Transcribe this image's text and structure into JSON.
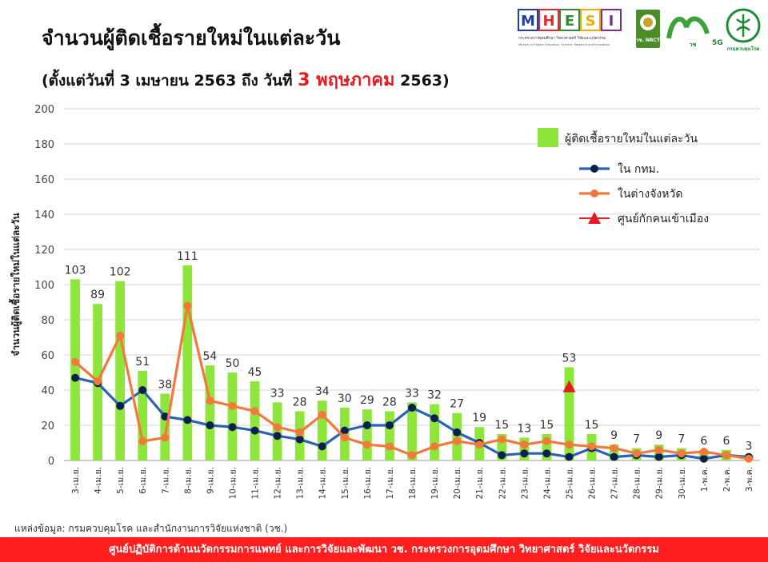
{
  "header": {
    "title": "จำนวนผู้ติดเชื้อรายใหม่ในแต่ละวัน",
    "subtitle_prefix": "(ตั้งแต่วันที่ 3 เมษายน 2563 ถึง วันที่ ",
    "subtitle_highlight": "3 พฤษภาคม",
    "subtitle_suffix": " 2563)"
  },
  "logos": {
    "mhesi_letters": [
      "M",
      "H",
      "E",
      "S",
      "I"
    ],
    "mhesi_colors": [
      "#1f3f9c",
      "#e02a2a",
      "#2e8b3a",
      "#f2a900",
      "#7b2d8e"
    ],
    "mhesi_caption_th": "กระทรวงการอุดมศึกษา วิทยาศาสตร์ วิจัยและนวัตกรรม",
    "mhesi_caption_en": "Ministry of Higher Education, Science, Research and Innovation",
    "nrct_label": "วช. NRCT",
    "wch_label": "วช",
    "wch_5g": "5G",
    "ddc_label": "กรมควบคุมโรค"
  },
  "chart_data": {
    "type": "bar",
    "ylabel": "จำนวนผู้ติดเชื้อรายใหม่ในแต่ละวัน",
    "ylim": [
      0,
      200
    ],
    "yticks": [
      0,
      20,
      40,
      60,
      80,
      100,
      120,
      140,
      160,
      180,
      200
    ],
    "grid": true,
    "legend_position": "top-right",
    "categories": [
      "3-เม.ย.",
      "4-เม.ย.",
      "5-เม.ย.",
      "6-เม.ย.",
      "7-เม.ย.",
      "8-เม.ย.",
      "9-เม.ย.",
      "10-เม.ย.",
      "11-เม.ย.",
      "12-เม.ย.",
      "13-เม.ย.",
      "14-เม.ย.",
      "15-เม.ย.",
      "16-เม.ย.",
      "17-เม.ย.",
      "18-เม.ย.",
      "19-เม.ย.",
      "20-เม.ย.",
      "21-เม.ย.",
      "22-เม.ย.",
      "23-เม.ย.",
      "24-เม.ย.",
      "25-เม.ย.",
      "26-เม.ย.",
      "27-เม.ย.",
      "28-เม.ย.",
      "29-เม.ย.",
      "30-เม.ย.",
      "1-พ.ค.",
      "2-พ.ค.",
      "3-พ.ค."
    ],
    "series": [
      {
        "name": "ผู้ติดเชื้อรายใหม่ในแต่ละวัน",
        "kind": "bar",
        "color": "#8ee63a",
        "values": [
          103,
          89,
          102,
          51,
          38,
          111,
          54,
          50,
          45,
          33,
          28,
          34,
          30,
          29,
          28,
          33,
          32,
          27,
          19,
          15,
          13,
          15,
          53,
          15,
          9,
          7,
          9,
          7,
          6,
          6,
          3
        ]
      },
      {
        "name": "ใน กทม.",
        "kind": "line",
        "color": "#2a62b5",
        "marker_color": "#0d1f4f",
        "values": [
          47,
          44,
          31,
          40,
          25,
          23,
          20,
          19,
          17,
          14,
          12,
          8,
          17,
          20,
          20,
          30,
          24,
          16,
          10,
          3,
          4,
          4,
          2,
          7,
          2,
          3,
          2,
          3,
          1,
          3,
          2
        ]
      },
      {
        "name": "ในต่างจังหวัด",
        "kind": "line",
        "color": "#f2783c",
        "marker_color": "#f2783c",
        "values": [
          56,
          45,
          71,
          11,
          13,
          88,
          34,
          31,
          28,
          19,
          16,
          26,
          13,
          9,
          8,
          3,
          8,
          11,
          9,
          12,
          9,
          11,
          9,
          8,
          7,
          4,
          6,
          4,
          5,
          3,
          1
        ]
      },
      {
        "name": "ศูนย์กักคนเข้าเมือง",
        "kind": "marker",
        "color": "#e31b23",
        "points": [
          {
            "category": "25-เม.ย.",
            "value": 42
          }
        ]
      }
    ]
  },
  "footer": {
    "source": "แหล่งข้อมูล: กรมควบคุมโรค และสำนักงานการวิจัยแห่งชาติ (วช.)",
    "banner": "ศูนย์ปฏิบัติการด้านนวัตกรรมการแพทย์ และการวิจัยและพัฒนา วช. กระทรวงการอุดมศึกษา วิทยาศาสตร์ วิจัยและนวัตกรรม"
  }
}
